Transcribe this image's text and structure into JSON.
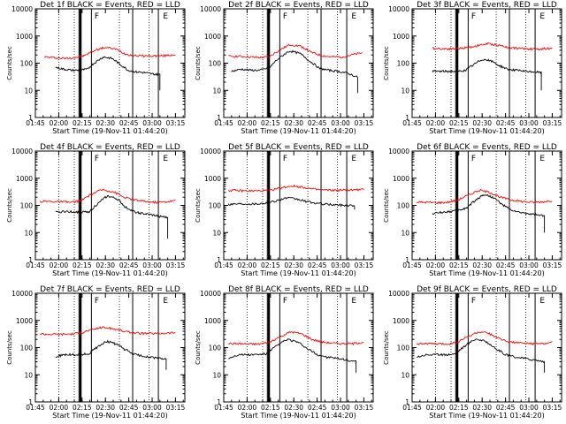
{
  "figure": {
    "subtitle_fmt": "Start Time ({start})"
  },
  "chart_data": [
    {
      "type": "line",
      "title": "Det 1f BLACK = Events, RED = LLD",
      "xlabel": "Start Time (19-Nov-11 01:44:20)",
      "ylabel": "Counts/sec",
      "yscale": "log",
      "ylim": [
        1,
        10000
      ],
      "x_tick_labels": [
        "01:45",
        "02:00",
        "02:15",
        "02:30",
        "02:45",
        "03:00",
        "03:15"
      ],
      "y_tick_labels": [
        "1",
        "10",
        "100",
        "1000",
        "10000"
      ],
      "markers": [
        "F",
        "E"
      ],
      "series": [
        {
          "color": "#ff0000",
          "start": "01:51",
          "end": "03:15",
          "base": [
            170,
            160,
            150,
            160,
            190,
            300,
            380,
            330,
            220,
            190,
            185,
            185,
            190,
            210
          ]
        },
        {
          "color": "#000000",
          "start": "01:58",
          "end": "03:05",
          "base": [
            70,
            60,
            55,
            55,
            60,
            110,
            170,
            150,
            90,
            55,
            48,
            45,
            40,
            38
          ],
          "drop_end": 10
        }
      ]
    },
    {
      "type": "line",
      "title": "Det 2f BLACK = Events, RED = LLD",
      "xlabel": "Start Time (19-Nov-11 01:44:20)",
      "ylabel": "Counts/sec",
      "yscale": "log",
      "ylim": [
        1,
        10000
      ],
      "x_tick_labels": [
        "01:45",
        "02:00",
        "02:15",
        "02:30",
        "02:45",
        "03:00",
        "03:15"
      ],
      "y_tick_labels": [
        "1",
        "10",
        "100",
        "1000",
        "10000"
      ],
      "markers": [
        "F",
        "E"
      ],
      "series": [
        {
          "color": "#ff0000",
          "start": "01:48",
          "end": "03:14",
          "base": [
            180,
            180,
            170,
            160,
            170,
            300,
            480,
            420,
            250,
            190,
            170,
            170,
            200,
            240
          ]
        },
        {
          "color": "#000000",
          "start": "01:50",
          "end": "03:11",
          "base": [
            50,
            60,
            55,
            55,
            70,
            160,
            280,
            230,
            120,
            65,
            55,
            50,
            42,
            30
          ],
          "drop_end": 8
        }
      ]
    },
    {
      "type": "line",
      "title": "Det 3f BLACK = Events, RED = LLD",
      "xlabel": "Start Time (19-Nov-11 01:44:20)",
      "ylabel": "Counts/sec",
      "yscale": "log",
      "ylim": [
        1,
        10000
      ],
      "x_tick_labels": [
        "01:45",
        "02:00",
        "02:15",
        "02:30",
        "02:45",
        "03:00",
        "03:15"
      ],
      "y_tick_labels": [
        "1",
        "10",
        "100",
        "1000",
        "10000"
      ],
      "markers": [
        "F",
        "E"
      ],
      "series": [
        {
          "color": "#ff0000",
          "start": "01:58",
          "end": "03:15",
          "base": [
            350,
            340,
            340,
            350,
            380,
            450,
            520,
            470,
            400,
            360,
            340,
            330,
            340,
            360
          ]
        },
        {
          "color": "#000000",
          "start": "01:58",
          "end": "03:08",
          "base": [
            50,
            50,
            50,
            50,
            55,
            90,
            140,
            120,
            80,
            60,
            55,
            50,
            48,
            45
          ],
          "drop_end": 10
        }
      ]
    },
    {
      "type": "line",
      "title": "Det 4f BLACK = Events, RED = LLD",
      "xlabel": "Start Time (19-Nov-11 01:44:20)",
      "ylabel": "Counts/sec",
      "yscale": "log",
      "ylim": [
        1,
        10000
      ],
      "x_tick_labels": [
        "01:45",
        "02:00",
        "02:15",
        "02:30",
        "02:45",
        "03:00",
        "03:15"
      ],
      "y_tick_labels": [
        "1",
        "10",
        "100",
        "1000",
        "10000"
      ],
      "markers": [
        "F",
        "E"
      ],
      "series": [
        {
          "color": "#ff0000",
          "start": "01:48",
          "end": "03:15",
          "base": [
            140,
            140,
            135,
            130,
            150,
            260,
            380,
            320,
            200,
            160,
            140,
            130,
            135,
            150
          ]
        },
        {
          "color": "#000000",
          "start": "01:58",
          "end": "03:10",
          "base": [
            55,
            60,
            58,
            55,
            60,
            120,
            220,
            180,
            90,
            60,
            50,
            45,
            40,
            35
          ],
          "drop_end": 6
        }
      ]
    },
    {
      "type": "line",
      "title": "Det 5f BLACK = Events, RED = LLD",
      "xlabel": "Start Time (19-Nov-11 01:44:20)",
      "ylabel": "Counts/sec",
      "yscale": "log",
      "ylim": [
        1,
        10000
      ],
      "x_tick_labels": [
        "01:45",
        "02:00",
        "02:15",
        "02:30",
        "02:45",
        "03:00",
        "03:15"
      ],
      "y_tick_labels": [
        "1",
        "10",
        "100",
        "1000",
        "10000"
      ],
      "markers": [
        "F",
        "E"
      ],
      "series": [
        {
          "color": "#ff0000",
          "start": "01:48",
          "end": "03:15",
          "base": [
            360,
            350,
            340,
            340,
            360,
            430,
            520,
            480,
            400,
            370,
            360,
            360,
            370,
            380
          ]
        },
        {
          "color": "#000000",
          "start": "01:48",
          "end": "03:09",
          "base": [
            110,
            115,
            115,
            115,
            125,
            150,
            190,
            170,
            140,
            120,
            110,
            105,
            100,
            100
          ],
          "drop_end": 70
        }
      ]
    },
    {
      "type": "line",
      "title": "Det 6f BLACK = Events, RED = LLD",
      "xlabel": "Start Time (19-Nov-11 01:44:20)",
      "ylabel": "Counts/sec",
      "yscale": "log",
      "ylim": [
        1,
        10000
      ],
      "x_tick_labels": [
        "01:45",
        "02:00",
        "02:15",
        "02:30",
        "02:45",
        "03:00",
        "03:15"
      ],
      "y_tick_labels": [
        "1",
        "10",
        "100",
        "1000",
        "10000"
      ],
      "markers": [
        "F",
        "E"
      ],
      "series": [
        {
          "color": "#ff0000",
          "start": "01:48",
          "end": "03:15",
          "base": [
            130,
            130,
            125,
            130,
            160,
            240,
            360,
            300,
            200,
            160,
            140,
            130,
            135,
            150
          ]
        },
        {
          "color": "#000000",
          "start": "01:58",
          "end": "03:10",
          "base": [
            50,
            55,
            60,
            65,
            80,
            150,
            250,
            200,
            110,
            70,
            55,
            50,
            45,
            40
          ],
          "drop_end": 10
        }
      ]
    },
    {
      "type": "line",
      "title": "Det 7f BLACK = Events, RED = LLD",
      "xlabel": "Start Time (19-Nov-11 01:44:20)",
      "ylabel": "Counts/sec",
      "yscale": "log",
      "ylim": [
        1,
        10000
      ],
      "x_tick_labels": [
        "01:45",
        "02:00",
        "02:15",
        "02:30",
        "02:45",
        "03:00",
        "03:15"
      ],
      "y_tick_labels": [
        "1",
        "10",
        "100",
        "1000",
        "10000"
      ],
      "markers": [
        "F",
        "E"
      ],
      "series": [
        {
          "color": "#ff0000",
          "start": "01:48",
          "end": "03:15",
          "base": [
            320,
            310,
            310,
            320,
            350,
            460,
            560,
            500,
            400,
            350,
            330,
            330,
            340,
            360
          ]
        },
        {
          "color": "#000000",
          "start": "01:58",
          "end": "03:09",
          "base": [
            45,
            55,
            55,
            55,
            60,
            110,
            170,
            140,
            90,
            60,
            50,
            45,
            40,
            38
          ],
          "drop_end": 15
        }
      ]
    },
    {
      "type": "line",
      "title": "Det 8f BLACK = Events, RED = LLD",
      "xlabel": "Start Time (19-Nov-11 01:44:20)",
      "ylabel": "Counts/sec",
      "yscale": "log",
      "ylim": [
        1,
        10000
      ],
      "x_tick_labels": [
        "01:45",
        "02:00",
        "02:15",
        "02:30",
        "02:45",
        "03:00",
        "03:15"
      ],
      "y_tick_labels": [
        "1",
        "10",
        "100",
        "1000",
        "10000"
      ],
      "markers": [
        "F",
        "E"
      ],
      "series": [
        {
          "color": "#ff0000",
          "start": "01:48",
          "end": "03:15",
          "base": [
            140,
            140,
            135,
            135,
            160,
            250,
            380,
            320,
            200,
            160,
            145,
            140,
            140,
            160
          ]
        },
        {
          "color": "#000000",
          "start": "01:48",
          "end": "03:10",
          "base": [
            40,
            55,
            55,
            55,
            60,
            120,
            200,
            160,
            90,
            55,
            45,
            40,
            35,
            30
          ],
          "drop_end": 12
        }
      ]
    },
    {
      "type": "line",
      "title": "Det 9f BLACK = Events, RED = LLD",
      "xlabel": "Start Time (19-Nov-11 01:44:20)",
      "ylabel": "Counts/sec",
      "yscale": "log",
      "ylim": [
        1,
        10000
      ],
      "x_tick_labels": [
        "01:45",
        "02:00",
        "02:15",
        "02:30",
        "02:45",
        "03:00",
        "03:15"
      ],
      "y_tick_labels": [
        "1",
        "10",
        "100",
        "1000",
        "10000"
      ],
      "markers": [
        "F",
        "E"
      ],
      "series": [
        {
          "color": "#ff0000",
          "start": "01:48",
          "end": "03:15",
          "base": [
            140,
            140,
            135,
            135,
            160,
            260,
            380,
            320,
            200,
            160,
            145,
            140,
            140,
            160
          ]
        },
        {
          "color": "#000000",
          "start": "01:48",
          "end": "03:10",
          "base": [
            45,
            55,
            55,
            55,
            60,
            120,
            210,
            170,
            90,
            55,
            45,
            40,
            35,
            30
          ],
          "drop_end": 12
        }
      ]
    }
  ]
}
